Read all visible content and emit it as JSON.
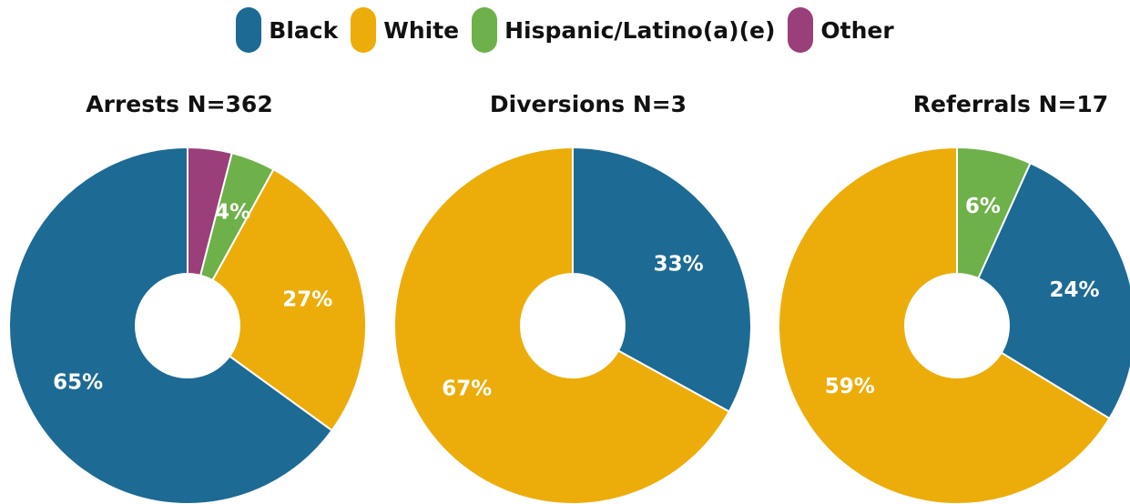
{
  "colors": {
    "Black": "#1d6a94",
    "White": "#ecad0b",
    "Hispanic/Latino(a)(e)": "#6eb04a",
    "Other": "#9a3f79"
  },
  "legend": [
    {
      "label": "Black",
      "color": "#1d6a94"
    },
    {
      "label": "White",
      "color": "#ecad0b"
    },
    {
      "label": "Hispanic/Latino(a)(e)",
      "color": "#6eb04a"
    },
    {
      "label": "Other",
      "color": "#9a3f79"
    }
  ],
  "chart_data": [
    {
      "type": "pie",
      "title": "Arrests N=362",
      "slices": [
        {
          "category": "Other",
          "value": 4,
          "label": ""
        },
        {
          "category": "Hispanic/Latino(a)(e)",
          "value": 4,
          "label": "4%"
        },
        {
          "category": "White",
          "value": 27,
          "label": "27%"
        },
        {
          "category": "Black",
          "value": 65,
          "label": "65%"
        }
      ]
    },
    {
      "type": "pie",
      "title": "Diversions N=3",
      "slices": [
        {
          "category": "Black",
          "value": 33,
          "label": "33%"
        },
        {
          "category": "White",
          "value": 67,
          "label": "67%"
        }
      ]
    },
    {
      "type": "pie",
      "title": "Referrals N=17",
      "slices": [
        {
          "category": "Hispanic/Latino(a)(e)",
          "value": 6,
          "label": "6%"
        },
        {
          "category": "Black",
          "value": 24,
          "label": "24%"
        },
        {
          "category": "White",
          "value": 59,
          "label": "59%"
        }
      ]
    }
  ]
}
